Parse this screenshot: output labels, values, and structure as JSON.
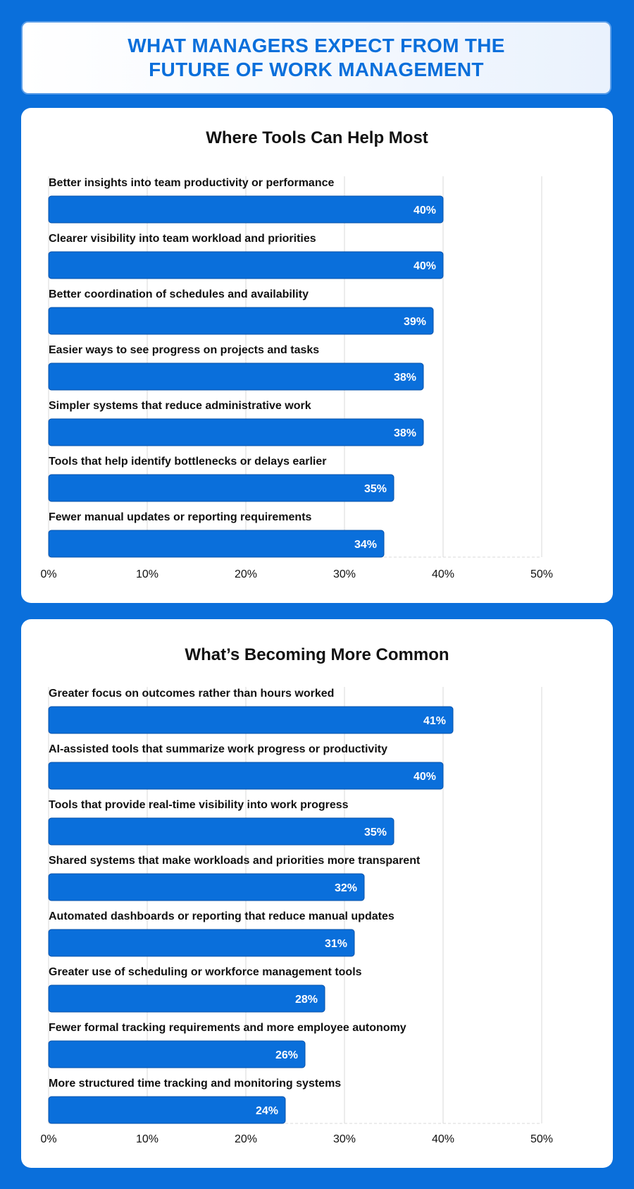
{
  "header": {
    "title_line1": "WHAT MANAGERS EXPECT FROM THE",
    "title_line2": "FUTURE OF WORK MANAGEMENT"
  },
  "colors": {
    "background": "#0a6fdb",
    "bar": "#0a6fdb",
    "bar_border": "#0550a8",
    "grid": "#d9d9d9"
  },
  "chart_data": [
    {
      "type": "bar",
      "orientation": "horizontal",
      "title": "Where Tools Can Help Most",
      "categories": [
        "Better insights into team productivity or performance",
        "Clearer visibility into team workload and priorities",
        "Better coordination of schedules and availability",
        "Easier ways to see progress on projects and tasks",
        "Simpler systems that reduce administrative work",
        "Tools that help identify bottlenecks or delays earlier",
        "Fewer manual updates or reporting requirements"
      ],
      "values": [
        40,
        40,
        39,
        38,
        38,
        35,
        34
      ],
      "value_labels": [
        "40%",
        "40%",
        "39%",
        "38%",
        "38%",
        "35%",
        "34%"
      ],
      "xlim": [
        0,
        50
      ],
      "xticks": [
        "0%",
        "10%",
        "20%",
        "30%",
        "40%",
        "50%"
      ],
      "grid": true
    },
    {
      "type": "bar",
      "orientation": "horizontal",
      "title": "What’s Becoming More Common",
      "categories": [
        "Greater focus on outcomes rather than hours worked",
        "AI-assisted tools that summarize work progress or productivity",
        "Tools that provide real-time visibility into work progress",
        "Shared systems that make workloads and priorities more transparent",
        "Automated dashboards or reporting that reduce manual updates",
        "Greater use of scheduling or workforce management tools",
        "Fewer formal tracking requirements and more employee autonomy",
        "More structured time tracking and monitoring systems"
      ],
      "values": [
        41,
        40,
        35,
        32,
        31,
        28,
        26,
        24
      ],
      "value_labels": [
        "41%",
        "40%",
        "35%",
        "32%",
        "31%",
        "28%",
        "26%",
        "24%"
      ],
      "xlim": [
        0,
        50
      ],
      "xticks": [
        "0%",
        "10%",
        "20%",
        "30%",
        "40%",
        "50%"
      ],
      "grid": true
    }
  ]
}
